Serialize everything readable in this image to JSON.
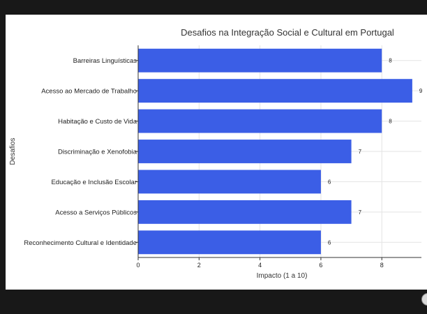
{
  "colors": {
    "bar": "#3b5ee6",
    "grid": "#e3e3e3",
    "axis": "#333333",
    "text": "#222222"
  },
  "chart_data": {
    "type": "bar",
    "orientation": "horizontal",
    "title": "Desafios na Integração Social e Cultural em Portugal",
    "xlabel": "Impacto (1 a 10)",
    "ylabel": "Desafios",
    "xlim": [
      0,
      9.3
    ],
    "xticks": [
      "0",
      "2",
      "4",
      "6",
      "8"
    ],
    "grid": true,
    "categories": [
      "Barreiras Linguísticas",
      "Acesso ao Mercado de Trabalho",
      "Habitação e Custo de Vida",
      "Discriminação e Xenofobia",
      "Educação e Inclusão Escolar",
      "Acesso a Serviços Públicos",
      "Reconhecimento Cultural e Identidade"
    ],
    "values": [
      8,
      9,
      8,
      7,
      6,
      7,
      6
    ],
    "value_labels": [
      "8",
      "9",
      "8",
      "7",
      "6",
      "7",
      "6"
    ]
  }
}
